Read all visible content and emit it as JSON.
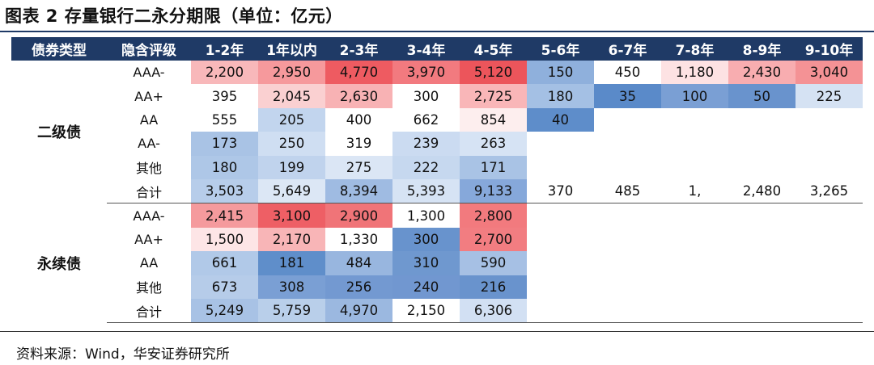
{
  "title": "图表 2 存量银行二永分期限（单位：亿元）",
  "source": "资料来源：Wind，华安证券研究所",
  "headers": [
    "债券类型",
    "隐含评级",
    "1-2年",
    "1年以内",
    "2-3年",
    "3-4年",
    "4-5年",
    "5-6年",
    "6-7年",
    "7-8年",
    "8-9年",
    "9-10年"
  ],
  "groups": [
    {
      "name": "二级债",
      "rows": [
        {
          "rating": "AAA-",
          "cells": [
            {
              "v": "2,200",
              "c": "#f8b8ba"
            },
            {
              "v": "2,950",
              "c": "#f6999c"
            },
            {
              "v": "4,770",
              "c": "#ee5b61"
            },
            {
              "v": "3,970",
              "c": "#f27a7f"
            },
            {
              "v": "5,120",
              "c": "#ec555b"
            },
            {
              "v": "150",
              "c": "#8fb0dc"
            },
            {
              "v": "450",
              "c": "#ffffff"
            },
            {
              "v": "1,180",
              "c": "#fde2e3"
            },
            {
              "v": "2,430",
              "c": "#f8adb0"
            },
            {
              "v": "3,040",
              "c": "#f49295"
            }
          ]
        },
        {
          "rating": "AA+",
          "cells": [
            {
              "v": "395",
              "c": "#ffffff"
            },
            {
              "v": "2,045",
              "c": "#fad0d1"
            },
            {
              "v": "2,630",
              "c": "#f8b2b4"
            },
            {
              "v": "300",
              "c": "#ffffff"
            },
            {
              "v": "2,725",
              "c": "#f9b6b8"
            },
            {
              "v": "180",
              "c": "#a4c0e4"
            },
            {
              "v": "35",
              "c": "#5a8ac9"
            },
            {
              "v": "100",
              "c": "#7a9fd4"
            },
            {
              "v": "50",
              "c": "#6993cd"
            },
            {
              "v": "225",
              "c": "#d5e2f3"
            }
          ]
        },
        {
          "rating": "AA",
          "cells": [
            {
              "v": "555",
              "c": "#ffffff"
            },
            {
              "v": "205",
              "c": "#c2d5ee"
            },
            {
              "v": "400",
              "c": "#ffffff"
            },
            {
              "v": "662",
              "c": "#ffffff"
            },
            {
              "v": "854",
              "c": "#fdeeee"
            },
            {
              "v": "40",
              "c": "#5e8dca"
            },
            {
              "v": "",
              "c": "#ffffff"
            },
            {
              "v": "",
              "c": "#ffffff"
            },
            {
              "v": "",
              "c": "#ffffff"
            },
            {
              "v": "",
              "c": "#ffffff"
            }
          ]
        },
        {
          "rating": "AA-",
          "cells": [
            {
              "v": "173",
              "c": "#a9c3e5"
            },
            {
              "v": "250",
              "c": "#cfdef2"
            },
            {
              "v": "319",
              "c": "#ffffff"
            },
            {
              "v": "239",
              "c": "#cbdbf1"
            },
            {
              "v": "263",
              "c": "#d6e3f4"
            },
            {
              "v": "",
              "c": "#ffffff"
            },
            {
              "v": "",
              "c": "#ffffff"
            },
            {
              "v": "",
              "c": "#ffffff"
            },
            {
              "v": "",
              "c": "#ffffff"
            },
            {
              "v": "",
              "c": "#ffffff"
            }
          ]
        },
        {
          "rating": "其他",
          "cells": [
            {
              "v": "180",
              "c": "#aec7e7"
            },
            {
              "v": "199",
              "c": "#c0d3ed"
            },
            {
              "v": "275",
              "c": "#dbe6f5"
            },
            {
              "v": "222",
              "c": "#c6d8ef"
            },
            {
              "v": "171",
              "c": "#a9c3e5"
            },
            {
              "v": "",
              "c": "#ffffff"
            },
            {
              "v": "",
              "c": "#ffffff"
            },
            {
              "v": "",
              "c": "#ffffff"
            },
            {
              "v": "",
              "c": "#ffffff"
            },
            {
              "v": "",
              "c": "#ffffff"
            }
          ]
        },
        {
          "rating": "合计",
          "cells": [
            {
              "v": "3,503",
              "c": "#b7cdea"
            },
            {
              "v": "5,649",
              "c": "#dce7f5"
            },
            {
              "v": "8,394",
              "c": "#9fbbe2"
            },
            {
              "v": "5,393",
              "c": "#d6e3f4"
            },
            {
              "v": "9,133",
              "c": "#86a8da"
            },
            {
              "v": "370",
              "c": "#ffffff"
            },
            {
              "v": "485",
              "c": "#ffffff"
            },
            {
              "v": "1,",
              "c": "#ffffff"
            },
            {
              "v": "2,480",
              "c": "#ffffff"
            },
            {
              "v": "3,265",
              "c": "#ffffff"
            }
          ]
        }
      ]
    },
    {
      "name": "永续债",
      "rows": [
        {
          "rating": "AAA-",
          "cells": [
            {
              "v": "2,415",
              "c": "#f59a9d"
            },
            {
              "v": "3,100",
              "c": "#ee5f65"
            },
            {
              "v": "2,900",
              "c": "#f07478"
            },
            {
              "v": "1,300",
              "c": "#ffffff"
            },
            {
              "v": "2,800",
              "c": "#f27a7e"
            },
            {
              "v": "",
              "c": "#ffffff"
            },
            {
              "v": "",
              "c": "#ffffff"
            },
            {
              "v": "",
              "c": "#ffffff"
            },
            {
              "v": "",
              "c": "#ffffff"
            },
            {
              "v": "",
              "c": "#ffffff"
            }
          ]
        },
        {
          "rating": "AA+",
          "cells": [
            {
              "v": "1,500",
              "c": "#fde5e6"
            },
            {
              "v": "2,170",
              "c": "#f8b5b7"
            },
            {
              "v": "1,330",
              "c": "#ffffff"
            },
            {
              "v": "300",
              "c": "#6893cd"
            },
            {
              "v": "2,700",
              "c": "#f27d81"
            },
            {
              "v": "",
              "c": "#ffffff"
            },
            {
              "v": "",
              "c": "#ffffff"
            },
            {
              "v": "",
              "c": "#ffffff"
            },
            {
              "v": "",
              "c": "#ffffff"
            },
            {
              "v": "",
              "c": "#ffffff"
            }
          ]
        },
        {
          "rating": "AA",
          "cells": [
            {
              "v": "661",
              "c": "#b1c9e8"
            },
            {
              "v": "181",
              "c": "#5f8eca"
            },
            {
              "v": "484",
              "c": "#98b6df"
            },
            {
              "v": "310",
              "c": "#6f98cf"
            },
            {
              "v": "590",
              "c": "#a6c0e4"
            },
            {
              "v": "",
              "c": "#ffffff"
            },
            {
              "v": "",
              "c": "#ffffff"
            },
            {
              "v": "",
              "c": "#ffffff"
            },
            {
              "v": "",
              "c": "#ffffff"
            },
            {
              "v": "",
              "c": "#ffffff"
            }
          ]
        },
        {
          "rating": "其他",
          "cells": [
            {
              "v": "673",
              "c": "#b6cce9"
            },
            {
              "v": "308",
              "c": "#7a9fd4"
            },
            {
              "v": "256",
              "c": "#7399d1"
            },
            {
              "v": "240",
              "c": "#7197d0"
            },
            {
              "v": "216",
              "c": "#6993cd"
            },
            {
              "v": "",
              "c": "#ffffff"
            },
            {
              "v": "",
              "c": "#ffffff"
            },
            {
              "v": "",
              "c": "#ffffff"
            },
            {
              "v": "",
              "c": "#ffffff"
            },
            {
              "v": "",
              "c": "#ffffff"
            }
          ]
        },
        {
          "rating": "合计",
          "cells": [
            {
              "v": "5,249",
              "c": "#a8c2e5"
            },
            {
              "v": "5,759",
              "c": "#b9cfea"
            },
            {
              "v": "4,970",
              "c": "#9bb8e0"
            },
            {
              "v": "2,150",
              "c": "#ffffff"
            },
            {
              "v": "6,306",
              "c": "#d2e0f3"
            },
            {
              "v": "",
              "c": "#ffffff"
            },
            {
              "v": "",
              "c": "#ffffff"
            },
            {
              "v": "",
              "c": "#ffffff"
            },
            {
              "v": "",
              "c": "#ffffff"
            },
            {
              "v": "",
              "c": "#ffffff"
            }
          ]
        }
      ]
    }
  ]
}
